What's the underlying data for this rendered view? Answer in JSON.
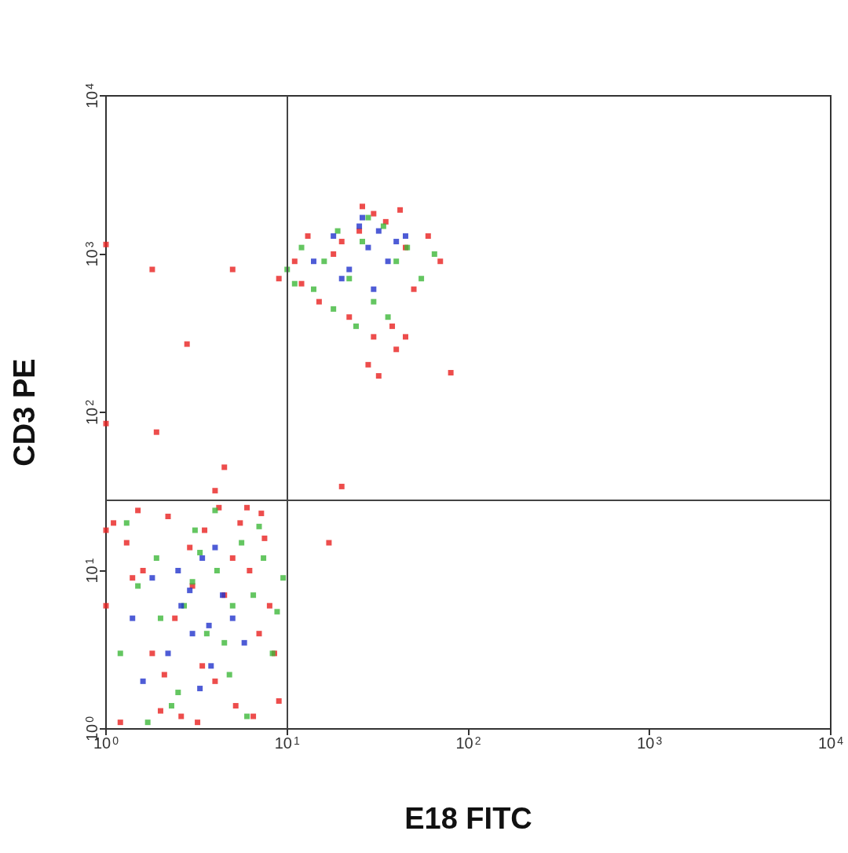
{
  "chart_data": {
    "type": "scatter",
    "xlabel": "E18 FITC",
    "ylabel": "CD3 PE",
    "log": "xy",
    "grid": false,
    "marker": "square",
    "xlim": [
      1,
      10000
    ],
    "ylim": [
      1,
      10000
    ],
    "xticks": [
      {
        "value": 1,
        "label": "10$^{0}$"
      },
      {
        "value": 10,
        "label": "10$^{1}$"
      },
      {
        "value": 100,
        "label": "10$^{2}$"
      },
      {
        "value": 1000,
        "label": "10$^{3}$"
      },
      {
        "value": 10000,
        "label": "10$^{4}$"
      }
    ],
    "yticks": [
      {
        "value": 1,
        "label": "10$^{0}$"
      },
      {
        "value": 10,
        "label": "10$^{1}$"
      },
      {
        "value": 100,
        "label": "10$^{2}$"
      },
      {
        "value": 1000,
        "label": "10$^{3}$"
      },
      {
        "value": 10000,
        "label": "10$^{4}$"
      }
    ],
    "ref_lines": [
      {
        "axis": "x",
        "value": 10,
        "color": "#444444"
      },
      {
        "axis": "y",
        "value": 28,
        "color": "#444444"
      }
    ],
    "series": [
      {
        "color": "#e8201f",
        "x": [
          1.1,
          1.3,
          1.5,
          1.8,
          2.2,
          2.6,
          3,
          3.5,
          4,
          5,
          6,
          7,
          8,
          9,
          1.2,
          1.6,
          2,
          2.4,
          2.9,
          3.4,
          4.5,
          5.5,
          6.5,
          7.5,
          8.5,
          1,
          1,
          1.4,
          2.1,
          3.2,
          4.2,
          5.2,
          6.2,
          7.2,
          1,
          2.8,
          1,
          1.9,
          20,
          17,
          80,
          9,
          11,
          13,
          15,
          18,
          22,
          25,
          30,
          35,
          40,
          45,
          50,
          60,
          70,
          28,
          32,
          38,
          42,
          12,
          20,
          26,
          4,
          4.5,
          1.8,
          5,
          30,
          45
        ],
        "values": [
          20,
          15,
          24,
          3,
          22,
          1.2,
          8,
          18,
          2,
          12,
          25,
          4,
          6,
          1.5,
          1.1,
          10,
          1.3,
          5,
          14,
          2.5,
          7,
          20,
          1.2,
          16,
          3,
          18,
          6,
          9,
          2.2,
          1.1,
          25,
          1.4,
          10,
          23,
          1150,
          270,
          85,
          75,
          34,
          15,
          178,
          700,
          900,
          1300,
          500,
          1000,
          400,
          1400,
          300,
          1600,
          250,
          1100,
          600,
          1300,
          900,
          200,
          170,
          350,
          1900,
          650,
          1200,
          2000,
          32,
          45,
          800,
          800,
          1800,
          300
        ]
      },
      {
        "color": "#3db83a",
        "x": [
          1.2,
          1.5,
          1.9,
          2.3,
          2.7,
          3.1,
          3.6,
          4.1,
          4.8,
          5.6,
          6.5,
          7.4,
          8.3,
          9.5,
          1.3,
          2,
          2.5,
          3.3,
          4,
          5,
          6,
          7,
          8.8,
          1.7,
          3,
          4.5,
          10,
          12,
          14,
          16,
          19,
          22,
          26,
          30,
          34,
          40,
          46,
          55,
          65,
          24,
          28,
          36,
          11,
          18
        ],
        "values": [
          3,
          8,
          12,
          1.4,
          6,
          18,
          4,
          10,
          2.2,
          15,
          7,
          12,
          3,
          9,
          20,
          5,
          1.7,
          13,
          24,
          6,
          1.2,
          19,
          5.5,
          1.1,
          8.5,
          3.5,
          800,
          1100,
          600,
          900,
          1400,
          700,
          1200,
          500,
          1500,
          900,
          1100,
          700,
          1000,
          350,
          1700,
          400,
          650,
          450
        ]
      },
      {
        "color": "#2233cc",
        "x": [
          1.4,
          1.8,
          2.2,
          2.6,
          3,
          3.4,
          3.8,
          4.4,
          5,
          5.8,
          2.5,
          3.3,
          4,
          1.6,
          2.9,
          3.7,
          14,
          18,
          22,
          25,
          28,
          32,
          36,
          40,
          45,
          20,
          30,
          26
        ],
        "values": [
          5,
          9,
          3,
          6,
          4,
          12,
          2.5,
          7,
          5,
          3.5,
          10,
          1.8,
          14,
          2,
          7.5,
          4.5,
          900,
          1300,
          800,
          1500,
          1100,
          1400,
          900,
          1200,
          1300,
          700,
          600,
          1700
        ]
      }
    ]
  }
}
